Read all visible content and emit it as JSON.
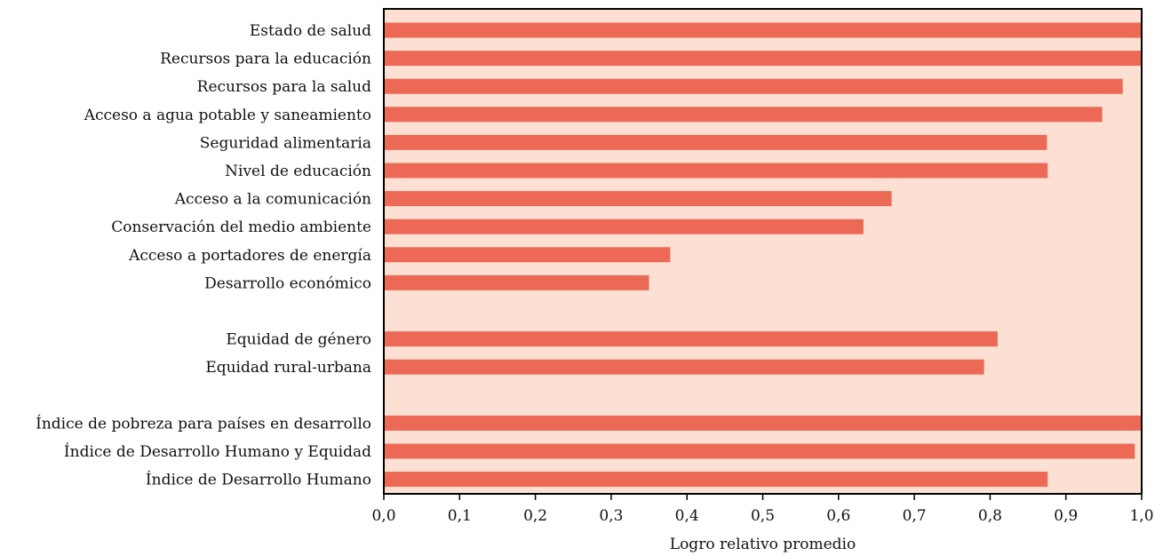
{
  "chart_data": {
    "type": "bar",
    "orientation": "horizontal",
    "title": "",
    "xlabel": "Logro relativo promedio",
    "ylabel": "",
    "xlim": [
      0,
      1
    ],
    "grid": false,
    "legend": "none",
    "colors": {
      "bar": "#ec6a55",
      "plot_background": "#fde0d4",
      "axis": "#000000"
    },
    "ticks": [
      "0,0",
      "0,1",
      "0,2",
      "0,3",
      "0,4",
      "0,5",
      "0,6",
      "0,7",
      "0,8",
      "0,9",
      "1,0"
    ],
    "groups": [
      {
        "categories": [
          "Estado de salud",
          "Recursos para la educación",
          "Recursos para la salud",
          "Acceso a agua potable y saneamiento",
          "Seguridad alimentaria",
          "Nivel de educación",
          "Acceso a la comunicación",
          "Conservación del medio ambiente",
          "Acceso a portadores de energía",
          "Desarrollo económico"
        ],
        "values": [
          1.0,
          1.0,
          0.975,
          0.948,
          0.875,
          0.876,
          0.67,
          0.633,
          0.378,
          0.35
        ]
      },
      {
        "categories": [
          "Equidad de género",
          "Equidad rural-urbana"
        ],
        "values": [
          0.81,
          0.792
        ]
      },
      {
        "categories": [
          "Índice de pobreza para países en desarrollo",
          "Índice de Desarrollo Humano y Equidad",
          "Índice de Desarrollo Humano"
        ],
        "values": [
          1.0,
          0.991,
          0.876
        ]
      }
    ]
  }
}
